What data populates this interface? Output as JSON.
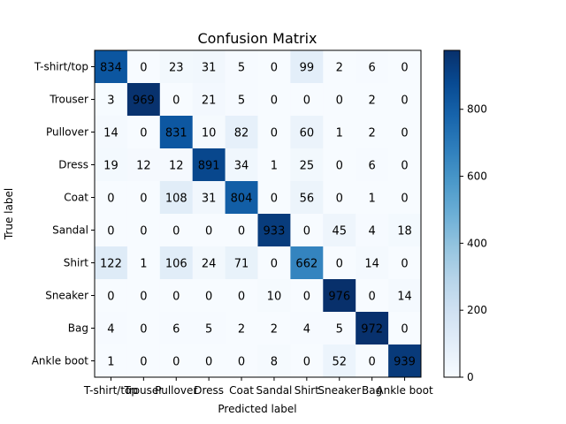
{
  "chart_data": {
    "type": "heatmap",
    "title": "Confusion Matrix",
    "xlabel": "Predicted label",
    "ylabel": "True label",
    "labels": [
      "T-shirt/top",
      "Trouser",
      "Pullover",
      "Dress",
      "Coat",
      "Sandal",
      "Shirt",
      "Sneaker",
      "Bag",
      "Ankle boot"
    ],
    "matrix": [
      [
        834,
        0,
        23,
        31,
        5,
        0,
        99,
        2,
        6,
        0
      ],
      [
        3,
        969,
        0,
        21,
        5,
        0,
        0,
        0,
        2,
        0
      ],
      [
        14,
        0,
        831,
        10,
        82,
        0,
        60,
        1,
        2,
        0
      ],
      [
        19,
        12,
        12,
        891,
        34,
        1,
        25,
        0,
        6,
        0
      ],
      [
        0,
        0,
        108,
        31,
        804,
        0,
        56,
        0,
        1,
        0
      ],
      [
        0,
        0,
        0,
        0,
        0,
        933,
        0,
        45,
        4,
        18
      ],
      [
        122,
        1,
        106,
        24,
        71,
        0,
        662,
        0,
        14,
        0
      ],
      [
        0,
        0,
        0,
        0,
        0,
        10,
        0,
        976,
        0,
        14
      ],
      [
        4,
        0,
        6,
        5,
        2,
        2,
        4,
        5,
        972,
        0
      ],
      [
        1,
        0,
        0,
        0,
        0,
        8,
        0,
        52,
        0,
        939
      ]
    ],
    "colormap": "Blues",
    "vmin": 0,
    "vmax": 976,
    "colorbar_ticks": [
      0,
      200,
      400,
      600,
      800
    ]
  }
}
